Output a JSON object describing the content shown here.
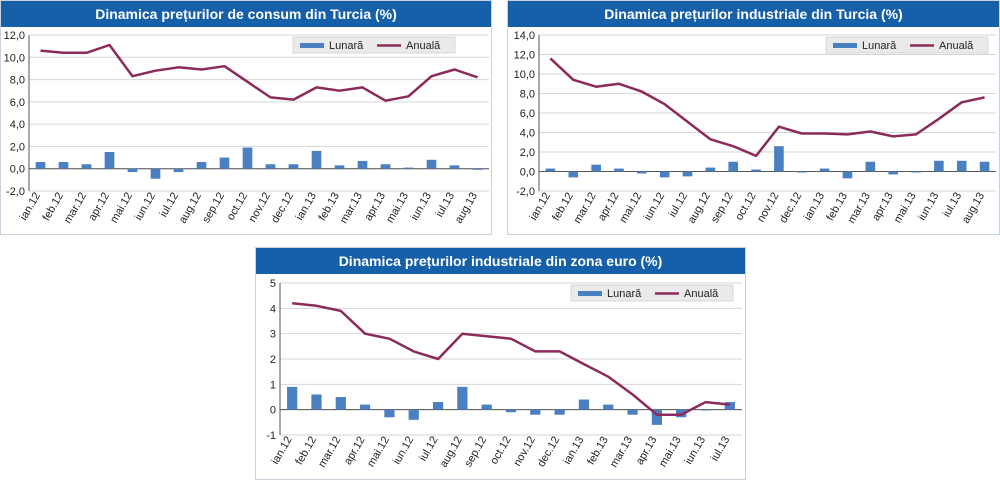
{
  "chart_data": [
    {
      "type": "bar+line",
      "title": "Dinamica prețurilor de consum din Turcia (%)",
      "categories": [
        "ian.12",
        "feb.12",
        "mar.12",
        "apr.12",
        "mai.12",
        "iun.12",
        "iul.12",
        "aug.12",
        "sep.12",
        "oct.12",
        "nov.12",
        "dec.12",
        "ian.13",
        "feb.13",
        "mar.13",
        "apr.13",
        "mai.13",
        "iun.13",
        "iul.13",
        "aug.13"
      ],
      "series": [
        {
          "name": "Lunară",
          "kind": "bar",
          "color": "#4a7fc1",
          "values": [
            0.6,
            0.6,
            0.4,
            1.5,
            -0.3,
            -0.9,
            -0.3,
            0.6,
            1.0,
            1.9,
            0.4,
            0.4,
            1.6,
            0.3,
            0.7,
            0.4,
            0.1,
            0.8,
            0.3,
            -0.1
          ]
        },
        {
          "name": "Anuală",
          "kind": "line",
          "color": "#8c2a5c",
          "values": [
            10.6,
            10.4,
            10.4,
            11.1,
            8.3,
            8.8,
            9.1,
            8.9,
            9.2,
            7.8,
            6.4,
            6.2,
            7.3,
            7.0,
            7.3,
            6.1,
            6.5,
            8.3,
            8.9,
            8.2
          ]
        }
      ],
      "yticks": [
        "12,0",
        "10,0",
        "8,0",
        "6,0",
        "4,0",
        "2,0",
        "0,0",
        "-2,0"
      ],
      "ylim": [
        -2,
        12
      ]
    },
    {
      "type": "bar+line",
      "title": "Dinamica prețurilor industriale din Turcia (%)",
      "categories": [
        "ian.12",
        "feb.12",
        "mar.12",
        "apr.12",
        "mai.12",
        "iun.12",
        "iul.12",
        "aug.12",
        "sep.12",
        "oct.12",
        "nov.12",
        "dec.12",
        "ian.13",
        "feb.13",
        "mar.13",
        "apr.13",
        "mai.13",
        "iun.13",
        "iul.13",
        "aug.13"
      ],
      "series": [
        {
          "name": "Lunară",
          "kind": "bar",
          "color": "#4a7fc1",
          "values": [
            0.3,
            -0.6,
            0.7,
            0.3,
            -0.2,
            -0.6,
            -0.5,
            0.4,
            1.0,
            0.2,
            2.6,
            -0.1,
            0.3,
            -0.7,
            1.0,
            -0.3,
            -0.1,
            1.1,
            1.1,
            1.0
          ]
        },
        {
          "name": "Anuală",
          "kind": "line",
          "color": "#8c2a5c",
          "values": [
            11.6,
            9.4,
            8.7,
            9.0,
            8.2,
            6.9,
            5.1,
            3.3,
            2.6,
            1.6,
            4.6,
            3.9,
            3.9,
            3.8,
            4.1,
            3.6,
            3.8,
            5.4,
            7.1,
            7.6
          ]
        }
      ],
      "yticks": [
        "14,0",
        "12,0",
        "10,0",
        "8,0",
        "6,0",
        "4,0",
        "2,0",
        "0,0",
        "-2,0"
      ],
      "ylim": [
        -2,
        14
      ]
    },
    {
      "type": "bar+line",
      "title": "Dinamica prețurilor industriale din zona euro (%)",
      "categories": [
        "ian.12",
        "feb.12",
        "mar.12",
        "apr.12",
        "mai.12",
        "iun.12",
        "iul.12",
        "aug.12",
        "sep.12",
        "oct.12",
        "nov.12",
        "dec.12",
        "ian.13",
        "feb.13",
        "mar.13",
        "apr.13",
        "mai.13",
        "iun.13",
        "iul.13"
      ],
      "series": [
        {
          "name": "Lunară",
          "kind": "bar",
          "color": "#4a7fc1",
          "values": [
            0.9,
            0.6,
            0.5,
            0.2,
            -0.3,
            -0.4,
            0.3,
            0.9,
            0.2,
            -0.1,
            -0.2,
            -0.2,
            0.4,
            0.2,
            -0.2,
            -0.6,
            -0.3,
            0.0,
            0.3
          ]
        },
        {
          "name": "Anuală",
          "kind": "line",
          "color": "#8c2a5c",
          "values": [
            4.2,
            4.1,
            3.9,
            3.0,
            2.8,
            2.3,
            2.0,
            3.0,
            2.9,
            2.8,
            2.3,
            2.3,
            1.8,
            1.3,
            0.6,
            -0.2,
            -0.2,
            0.3,
            0.2
          ]
        }
      ],
      "yticks": [
        "5",
        "4",
        "3",
        "2",
        "1",
        "0",
        "-1"
      ],
      "ylim": [
        -1,
        5
      ]
    }
  ]
}
